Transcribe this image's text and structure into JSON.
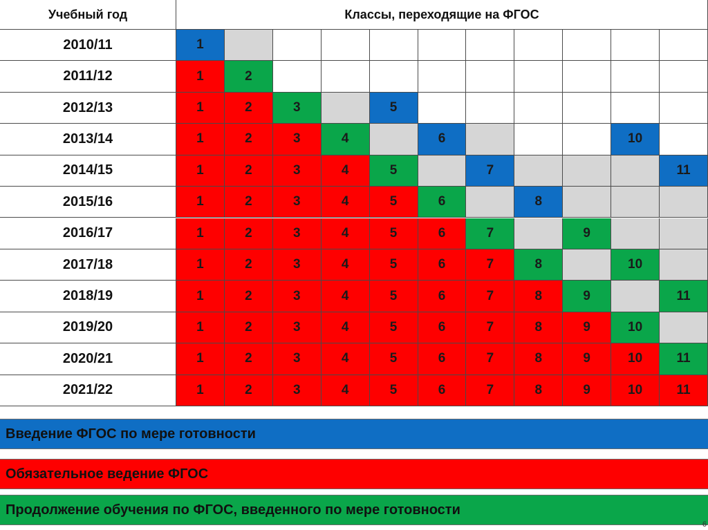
{
  "header": {
    "year_label": "Учебный год",
    "classes_label": "Классы, переходящие на ФГОС"
  },
  "colors": {
    "W": "#ffffff",
    "G": "#d6d6d6",
    "R": "#fe0000",
    "N": "#0aa64a",
    "B": "#0f6ec4"
  },
  "rows": [
    {
      "year": "2010/11",
      "cells": [
        [
          "B",
          "1"
        ],
        [
          "G",
          ""
        ],
        [
          "W",
          ""
        ],
        [
          "W",
          ""
        ],
        [
          "W",
          ""
        ],
        [
          "W",
          ""
        ],
        [
          "W",
          ""
        ],
        [
          "W",
          ""
        ],
        [
          "W",
          ""
        ],
        [
          "W",
          ""
        ],
        [
          "W",
          ""
        ]
      ]
    },
    {
      "year": "2011/12",
      "cells": [
        [
          "R",
          "1"
        ],
        [
          "N",
          "2"
        ],
        [
          "W",
          ""
        ],
        [
          "W",
          ""
        ],
        [
          "W",
          ""
        ],
        [
          "W",
          ""
        ],
        [
          "W",
          ""
        ],
        [
          "W",
          ""
        ],
        [
          "W",
          ""
        ],
        [
          "W",
          ""
        ],
        [
          "W",
          ""
        ]
      ]
    },
    {
      "year": "2012/13",
      "cells": [
        [
          "R",
          "1"
        ],
        [
          "R",
          "2"
        ],
        [
          "N",
          "3"
        ],
        [
          "G",
          ""
        ],
        [
          "B",
          "5"
        ],
        [
          "W",
          ""
        ],
        [
          "W",
          ""
        ],
        [
          "W",
          ""
        ],
        [
          "W",
          ""
        ],
        [
          "W",
          ""
        ],
        [
          "W",
          ""
        ]
      ]
    },
    {
      "year": "2013/14",
      "cells": [
        [
          "R",
          "1"
        ],
        [
          "R",
          "2"
        ],
        [
          "R",
          "3"
        ],
        [
          "N",
          "4"
        ],
        [
          "G",
          ""
        ],
        [
          "B",
          "6"
        ],
        [
          "G",
          ""
        ],
        [
          "W",
          ""
        ],
        [
          "W",
          ""
        ],
        [
          "B",
          "10"
        ],
        [
          "W",
          ""
        ]
      ]
    },
    {
      "year": "2014/15",
      "cells": [
        [
          "R",
          "1"
        ],
        [
          "R",
          "2"
        ],
        [
          "R",
          "3"
        ],
        [
          "R",
          "4"
        ],
        [
          "N",
          "5"
        ],
        [
          "G",
          ""
        ],
        [
          "B",
          "7"
        ],
        [
          "G",
          ""
        ],
        [
          "G",
          ""
        ],
        [
          "G",
          ""
        ],
        [
          "B",
          "11"
        ]
      ]
    },
    {
      "year": "2015/16",
      "cells": [
        [
          "R",
          "1"
        ],
        [
          "R",
          "2"
        ],
        [
          "R",
          "3"
        ],
        [
          "R",
          "4"
        ],
        [
          "R",
          "5"
        ],
        [
          "N",
          "6"
        ],
        [
          "G",
          ""
        ],
        [
          "B",
          "8"
        ],
        [
          "G",
          ""
        ],
        [
          "G",
          ""
        ],
        [
          "G",
          ""
        ]
      ]
    },
    {
      "year": "2016/17",
      "cells": [
        [
          "R",
          "1"
        ],
        [
          "R",
          "2"
        ],
        [
          "R",
          "3"
        ],
        [
          "R",
          "4"
        ],
        [
          "R",
          "5"
        ],
        [
          "R",
          "6"
        ],
        [
          "N",
          "7"
        ],
        [
          "G",
          ""
        ],
        [
          "N",
          "9"
        ],
        [
          "G",
          ""
        ],
        [
          "G",
          ""
        ]
      ]
    },
    {
      "year": "2017/18",
      "cells": [
        [
          "R",
          "1"
        ],
        [
          "R",
          "2"
        ],
        [
          "R",
          "3"
        ],
        [
          "R",
          "4"
        ],
        [
          "R",
          "5"
        ],
        [
          "R",
          "6"
        ],
        [
          "R",
          "7"
        ],
        [
          "N",
          "8"
        ],
        [
          "G",
          ""
        ],
        [
          "N",
          "10"
        ],
        [
          "G",
          ""
        ]
      ]
    },
    {
      "year": "2018/19",
      "cells": [
        [
          "R",
          "1"
        ],
        [
          "R",
          "2"
        ],
        [
          "R",
          "3"
        ],
        [
          "R",
          "4"
        ],
        [
          "R",
          "5"
        ],
        [
          "R",
          "6"
        ],
        [
          "R",
          "7"
        ],
        [
          "R",
          "8"
        ],
        [
          "N",
          "9"
        ],
        [
          "G",
          ""
        ],
        [
          "N",
          "11"
        ]
      ]
    },
    {
      "year": "2019/20",
      "cells": [
        [
          "R",
          "1"
        ],
        [
          "R",
          "2"
        ],
        [
          "R",
          "3"
        ],
        [
          "R",
          "4"
        ],
        [
          "R",
          "5"
        ],
        [
          "R",
          "6"
        ],
        [
          "R",
          "7"
        ],
        [
          "R",
          "8"
        ],
        [
          "R",
          "9"
        ],
        [
          "N",
          "10"
        ],
        [
          "G",
          ""
        ]
      ]
    },
    {
      "year": "2020/21",
      "cells": [
        [
          "R",
          "1"
        ],
        [
          "R",
          "2"
        ],
        [
          "R",
          "3"
        ],
        [
          "R",
          "4"
        ],
        [
          "R",
          "5"
        ],
        [
          "R",
          "6"
        ],
        [
          "R",
          "7"
        ],
        [
          "R",
          "8"
        ],
        [
          "R",
          "9"
        ],
        [
          "R",
          "10"
        ],
        [
          "N",
          "11"
        ]
      ]
    },
    {
      "year": "2021/22",
      "cells": [
        [
          "R",
          "1"
        ],
        [
          "R",
          "2"
        ],
        [
          "R",
          "3"
        ],
        [
          "R",
          "4"
        ],
        [
          "R",
          "5"
        ],
        [
          "R",
          "6"
        ],
        [
          "R",
          "7"
        ],
        [
          "R",
          "8"
        ],
        [
          "R",
          "9"
        ],
        [
          "R",
          "10"
        ],
        [
          "R",
          "11"
        ]
      ]
    }
  ],
  "legend": {
    "blue": "Введение ФГОС по мере готовности",
    "red": "Обязательное ведение ФГОС",
    "green": "Продолжение обучения по ФГОС, введенного по мере готовности"
  },
  "slide_number": "6"
}
